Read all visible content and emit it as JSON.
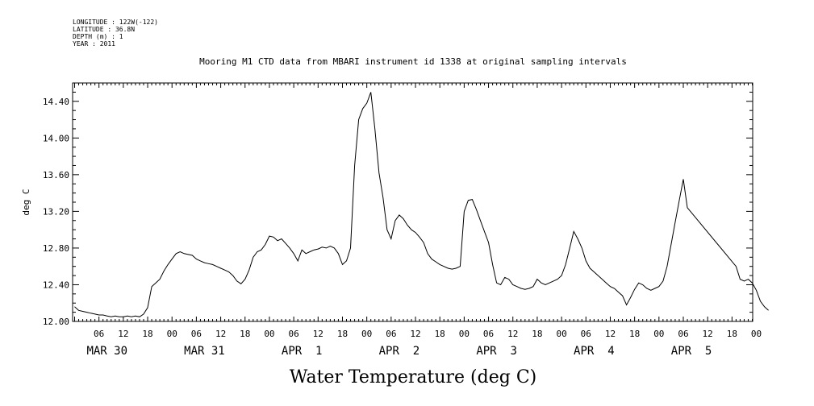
{
  "header": {
    "info_lines": [
      "LONGITUDE : 122W(-122)",
      "LATITUDE : 36.8N",
      "DEPTH (m) : 1",
      "YEAR : 2011"
    ]
  },
  "chart_data": {
    "type": "line",
    "title": "Mooring M1 CTD data from MBARI instrument id 1338 at original sampling intervals",
    "ylabel": "deg C",
    "xlabel": "Water Temperature (deg C)",
    "ylim": [
      12.0,
      14.6
    ],
    "xlim_hours": [
      0,
      168
    ],
    "y_ticks": [
      "12.00",
      "12.40",
      "12.80",
      "13.20",
      "13.60",
      "14.00",
      "14.40"
    ],
    "hour_ticks": [
      "06",
      "12",
      "18",
      "00",
      "06",
      "12",
      "18",
      "00",
      "06",
      "12",
      "18",
      "00",
      "06",
      "12",
      "18",
      "00",
      "06",
      "12",
      "18",
      "00",
      "06",
      "12",
      "18",
      "00",
      "06",
      "12",
      "18",
      "00"
    ],
    "day_labels": [
      "MAR 30",
      "MAR 31",
      "APR  1",
      "APR  2",
      "APR  3",
      "APR  4",
      "APR  5"
    ],
    "series": [
      {
        "values": [
          [
            0,
            12.16
          ],
          [
            1,
            12.12
          ],
          [
            2,
            12.11
          ],
          [
            3,
            12.1
          ],
          [
            4,
            12.09
          ],
          [
            5,
            12.08
          ],
          [
            6,
            12.07
          ],
          [
            7,
            12.07
          ],
          [
            8,
            12.06
          ],
          [
            9,
            12.05
          ],
          [
            10,
            12.06
          ],
          [
            11,
            12.05
          ],
          [
            12,
            12.05
          ],
          [
            13,
            12.06
          ],
          [
            14,
            12.05
          ],
          [
            15,
            12.06
          ],
          [
            16,
            12.05
          ],
          [
            17,
            12.08
          ],
          [
            18,
            12.15
          ],
          [
            19,
            12.38
          ],
          [
            20,
            12.42
          ],
          [
            21,
            12.46
          ],
          [
            22,
            12.55
          ],
          [
            23,
            12.62
          ],
          [
            24,
            12.68
          ],
          [
            25,
            12.74
          ],
          [
            26,
            12.76
          ],
          [
            27,
            12.74
          ],
          [
            28,
            12.73
          ],
          [
            29,
            12.72
          ],
          [
            30,
            12.68
          ],
          [
            31,
            12.66
          ],
          [
            32,
            12.64
          ],
          [
            33,
            12.63
          ],
          [
            34,
            12.62
          ],
          [
            35,
            12.6
          ],
          [
            36,
            12.58
          ],
          [
            37,
            12.56
          ],
          [
            38,
            12.54
          ],
          [
            39,
            12.5
          ],
          [
            40,
            12.44
          ],
          [
            41,
            12.41
          ],
          [
            42,
            12.46
          ],
          [
            43,
            12.56
          ],
          [
            44,
            12.7
          ],
          [
            45,
            12.76
          ],
          [
            46,
            12.78
          ],
          [
            47,
            12.84
          ],
          [
            48,
            12.93
          ],
          [
            49,
            12.92
          ],
          [
            50,
            12.88
          ],
          [
            51,
            12.9
          ],
          [
            52,
            12.85
          ],
          [
            53,
            12.8
          ],
          [
            54,
            12.74
          ],
          [
            55,
            12.66
          ],
          [
            56,
            12.78
          ],
          [
            57,
            12.74
          ],
          [
            58,
            12.76
          ],
          [
            59,
            12.78
          ],
          [
            60,
            12.79
          ],
          [
            61,
            12.81
          ],
          [
            62,
            12.8
          ],
          [
            63,
            12.82
          ],
          [
            64,
            12.8
          ],
          [
            65,
            12.74
          ],
          [
            66,
            12.62
          ],
          [
            67,
            12.66
          ],
          [
            68,
            12.8
          ],
          [
            69,
            13.7
          ],
          [
            70,
            14.2
          ],
          [
            71,
            14.32
          ],
          [
            72,
            14.38
          ],
          [
            73,
            14.5
          ],
          [
            74,
            14.1
          ],
          [
            75,
            13.62
          ],
          [
            76,
            13.35
          ],
          [
            77,
            13.0
          ],
          [
            78,
            12.9
          ],
          [
            79,
            13.1
          ],
          [
            80,
            13.16
          ],
          [
            81,
            13.12
          ],
          [
            82,
            13.05
          ],
          [
            83,
            13.0
          ],
          [
            84,
            12.97
          ],
          [
            85,
            12.92
          ],
          [
            86,
            12.86
          ],
          [
            87,
            12.74
          ],
          [
            88,
            12.68
          ],
          [
            89,
            12.65
          ],
          [
            90,
            12.62
          ],
          [
            91,
            12.6
          ],
          [
            92,
            12.58
          ],
          [
            93,
            12.57
          ],
          [
            94,
            12.58
          ],
          [
            95,
            12.6
          ],
          [
            96,
            13.2
          ],
          [
            97,
            13.32
          ],
          [
            98,
            13.33
          ],
          [
            99,
            13.22
          ],
          [
            100,
            13.1
          ],
          [
            101,
            12.98
          ],
          [
            102,
            12.86
          ],
          [
            103,
            12.62
          ],
          [
            104,
            12.42
          ],
          [
            105,
            12.4
          ],
          [
            106,
            12.48
          ],
          [
            107,
            12.46
          ],
          [
            108,
            12.4
          ],
          [
            109,
            12.38
          ],
          [
            110,
            12.36
          ],
          [
            111,
            12.35
          ],
          [
            112,
            12.36
          ],
          [
            113,
            12.38
          ],
          [
            114,
            12.46
          ],
          [
            115,
            12.42
          ],
          [
            116,
            12.4
          ],
          [
            117,
            12.42
          ],
          [
            118,
            12.44
          ],
          [
            119,
            12.46
          ],
          [
            120,
            12.5
          ],
          [
            121,
            12.62
          ],
          [
            122,
            12.8
          ],
          [
            123,
            12.98
          ],
          [
            124,
            12.9
          ],
          [
            125,
            12.8
          ],
          [
            126,
            12.66
          ],
          [
            127,
            12.58
          ],
          [
            128,
            12.54
          ],
          [
            129,
            12.5
          ],
          [
            130,
            12.46
          ],
          [
            131,
            12.42
          ],
          [
            132,
            12.38
          ],
          [
            133,
            12.36
          ],
          [
            134,
            12.32
          ],
          [
            135,
            12.28
          ],
          [
            136,
            12.18
          ],
          [
            137,
            12.26
          ],
          [
            138,
            12.35
          ],
          [
            139,
            12.42
          ],
          [
            140,
            12.4
          ],
          [
            141,
            12.36
          ],
          [
            142,
            12.34
          ],
          [
            143,
            12.36
          ],
          [
            144,
            12.38
          ],
          [
            145,
            12.44
          ],
          [
            146,
            12.6
          ],
          [
            147,
            12.84
          ],
          [
            148,
            13.08
          ],
          [
            149,
            13.32
          ],
          [
            150,
            13.55
          ],
          [
            151,
            13.24
          ],
          [
            163,
            12.6
          ],
          [
            164,
            12.46
          ],
          [
            165,
            12.44
          ],
          [
            166,
            12.46
          ],
          [
            167,
            12.42
          ],
          [
            168,
            12.34
          ],
          [
            169,
            12.22
          ],
          [
            170,
            12.16
          ],
          [
            171,
            12.12
          ]
        ]
      }
    ]
  }
}
